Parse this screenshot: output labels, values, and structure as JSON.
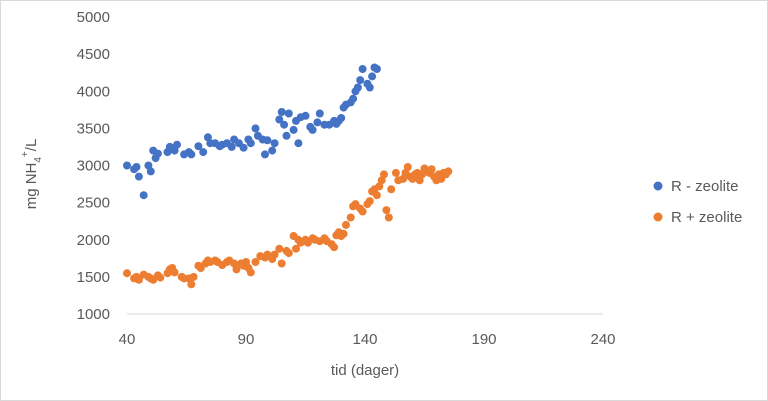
{
  "chart_data": {
    "type": "scatter",
    "xlabel": "tid (dager)",
    "ylabel_parts": {
      "base": "mg NH",
      "sub": "4",
      "sup": "+",
      "tail": "/L"
    },
    "xlim": [
      40,
      240
    ],
    "ylim": [
      1000,
      5000
    ],
    "x_ticks": [
      "40",
      "90",
      "140",
      "190",
      "240"
    ],
    "y_ticks": [
      "1000",
      "1500",
      "2000",
      "2500",
      "3000",
      "3500",
      "4000",
      "4500",
      "5000"
    ],
    "grid": false,
    "legend_position": "right",
    "series": [
      {
        "name": "R - zeolite",
        "color": "#4472c4",
        "points": [
          [
            40,
            3000
          ],
          [
            43,
            2950
          ],
          [
            44,
            2980
          ],
          [
            45,
            2850
          ],
          [
            47,
            2600
          ],
          [
            49,
            3000
          ],
          [
            50,
            2920
          ],
          [
            51,
            3200
          ],
          [
            52,
            3100
          ],
          [
            53,
            3160
          ],
          [
            57,
            3180
          ],
          [
            58,
            3250
          ],
          [
            60,
            3200
          ],
          [
            61,
            3280
          ],
          [
            64,
            3150
          ],
          [
            66,
            3180
          ],
          [
            67,
            3150
          ],
          [
            70,
            3260
          ],
          [
            72,
            3180
          ],
          [
            74,
            3380
          ],
          [
            75,
            3300
          ],
          [
            77,
            3300
          ],
          [
            79,
            3260
          ],
          [
            80,
            3280
          ],
          [
            82,
            3300
          ],
          [
            84,
            3250
          ],
          [
            85,
            3350
          ],
          [
            87,
            3300
          ],
          [
            89,
            3240
          ],
          [
            91,
            3350
          ],
          [
            92,
            3300
          ],
          [
            94,
            3500
          ],
          [
            95,
            3400
          ],
          [
            97,
            3350
          ],
          [
            98,
            3150
          ],
          [
            99,
            3340
          ],
          [
            101,
            3200
          ],
          [
            102,
            3300
          ],
          [
            104,
            3620
          ],
          [
            105,
            3720
          ],
          [
            106,
            3550
          ],
          [
            107,
            3400
          ],
          [
            108,
            3700
          ],
          [
            110,
            3480
          ],
          [
            111,
            3600
          ],
          [
            112,
            3300
          ],
          [
            113,
            3650
          ],
          [
            115,
            3670
          ],
          [
            117,
            3520
          ],
          [
            118,
            3480
          ],
          [
            120,
            3580
          ],
          [
            121,
            3700
          ],
          [
            123,
            3550
          ],
          [
            125,
            3550
          ],
          [
            127,
            3600
          ],
          [
            128,
            3560
          ],
          [
            129,
            3600
          ],
          [
            130,
            3640
          ],
          [
            131,
            3780
          ],
          [
            132,
            3820
          ],
          [
            134,
            3850
          ],
          [
            135,
            3900
          ],
          [
            136,
            4000
          ],
          [
            137,
            4050
          ],
          [
            138,
            4150
          ],
          [
            139,
            4300
          ],
          [
            141,
            4100
          ],
          [
            142,
            4050
          ],
          [
            143,
            4200
          ],
          [
            144,
            4320
          ],
          [
            145,
            4300
          ]
        ]
      },
      {
        "name": "R + zeolite",
        "color": "#ed7d31",
        "points": [
          [
            40,
            1550
          ],
          [
            43,
            1480
          ],
          [
            44,
            1500
          ],
          [
            45,
            1460
          ],
          [
            47,
            1530
          ],
          [
            49,
            1500
          ],
          [
            50,
            1480
          ],
          [
            51,
            1460
          ],
          [
            53,
            1520
          ],
          [
            54,
            1490
          ],
          [
            57,
            1550
          ],
          [
            58,
            1600
          ],
          [
            59,
            1620
          ],
          [
            60,
            1560
          ],
          [
            63,
            1500
          ],
          [
            64,
            1480
          ],
          [
            66,
            1480
          ],
          [
            67,
            1400
          ],
          [
            68,
            1500
          ],
          [
            70,
            1650
          ],
          [
            71,
            1620
          ],
          [
            73,
            1680
          ],
          [
            74,
            1720
          ],
          [
            75,
            1700
          ],
          [
            77,
            1720
          ],
          [
            78,
            1700
          ],
          [
            80,
            1660
          ],
          [
            82,
            1700
          ],
          [
            83,
            1720
          ],
          [
            85,
            1680
          ],
          [
            86,
            1600
          ],
          [
            88,
            1680
          ],
          [
            89,
            1650
          ],
          [
            90,
            1700
          ],
          [
            91,
            1620
          ],
          [
            92,
            1560
          ],
          [
            94,
            1700
          ],
          [
            96,
            1780
          ],
          [
            98,
            1760
          ],
          [
            99,
            1800
          ],
          [
            101,
            1740
          ],
          [
            102,
            1800
          ],
          [
            104,
            1880
          ],
          [
            105,
            1680
          ],
          [
            107,
            1850
          ],
          [
            108,
            1820
          ],
          [
            110,
            2050
          ],
          [
            111,
            1880
          ],
          [
            112,
            2000
          ],
          [
            113,
            1960
          ],
          [
            115,
            2000
          ],
          [
            116,
            1960
          ],
          [
            118,
            2020
          ],
          [
            119,
            2000
          ],
          [
            121,
            1980
          ],
          [
            123,
            2020
          ],
          [
            124,
            1980
          ],
          [
            126,
            1940
          ],
          [
            127,
            1900
          ],
          [
            128,
            2060
          ],
          [
            129,
            2100
          ],
          [
            130,
            2050
          ],
          [
            131,
            2080
          ],
          [
            132,
            2200
          ],
          [
            134,
            2300
          ],
          [
            135,
            2450
          ],
          [
            136,
            2480
          ],
          [
            138,
            2420
          ],
          [
            139,
            2380
          ],
          [
            141,
            2480
          ],
          [
            142,
            2520
          ],
          [
            143,
            2650
          ],
          [
            144,
            2680
          ],
          [
            145,
            2600
          ],
          [
            146,
            2720
          ],
          [
            147,
            2800
          ],
          [
            148,
            2880
          ],
          [
            149,
            2400
          ],
          [
            150,
            2300
          ],
          [
            151,
            2680
          ],
          [
            153,
            2900
          ],
          [
            154,
            2800
          ],
          [
            156,
            2820
          ],
          [
            157,
            2900
          ],
          [
            158,
            2980
          ],
          [
            159,
            2850
          ],
          [
            160,
            2820
          ],
          [
            161,
            2880
          ],
          [
            162,
            2900
          ],
          [
            163,
            2800
          ],
          [
            164,
            2880
          ],
          [
            165,
            2960
          ],
          [
            166,
            2920
          ],
          [
            167,
            2900
          ],
          [
            168,
            2950
          ],
          [
            169,
            2850
          ],
          [
            170,
            2800
          ],
          [
            171,
            2880
          ],
          [
            172,
            2820
          ],
          [
            173,
            2900
          ],
          [
            174,
            2880
          ],
          [
            175,
            2920
          ]
        ]
      }
    ]
  }
}
